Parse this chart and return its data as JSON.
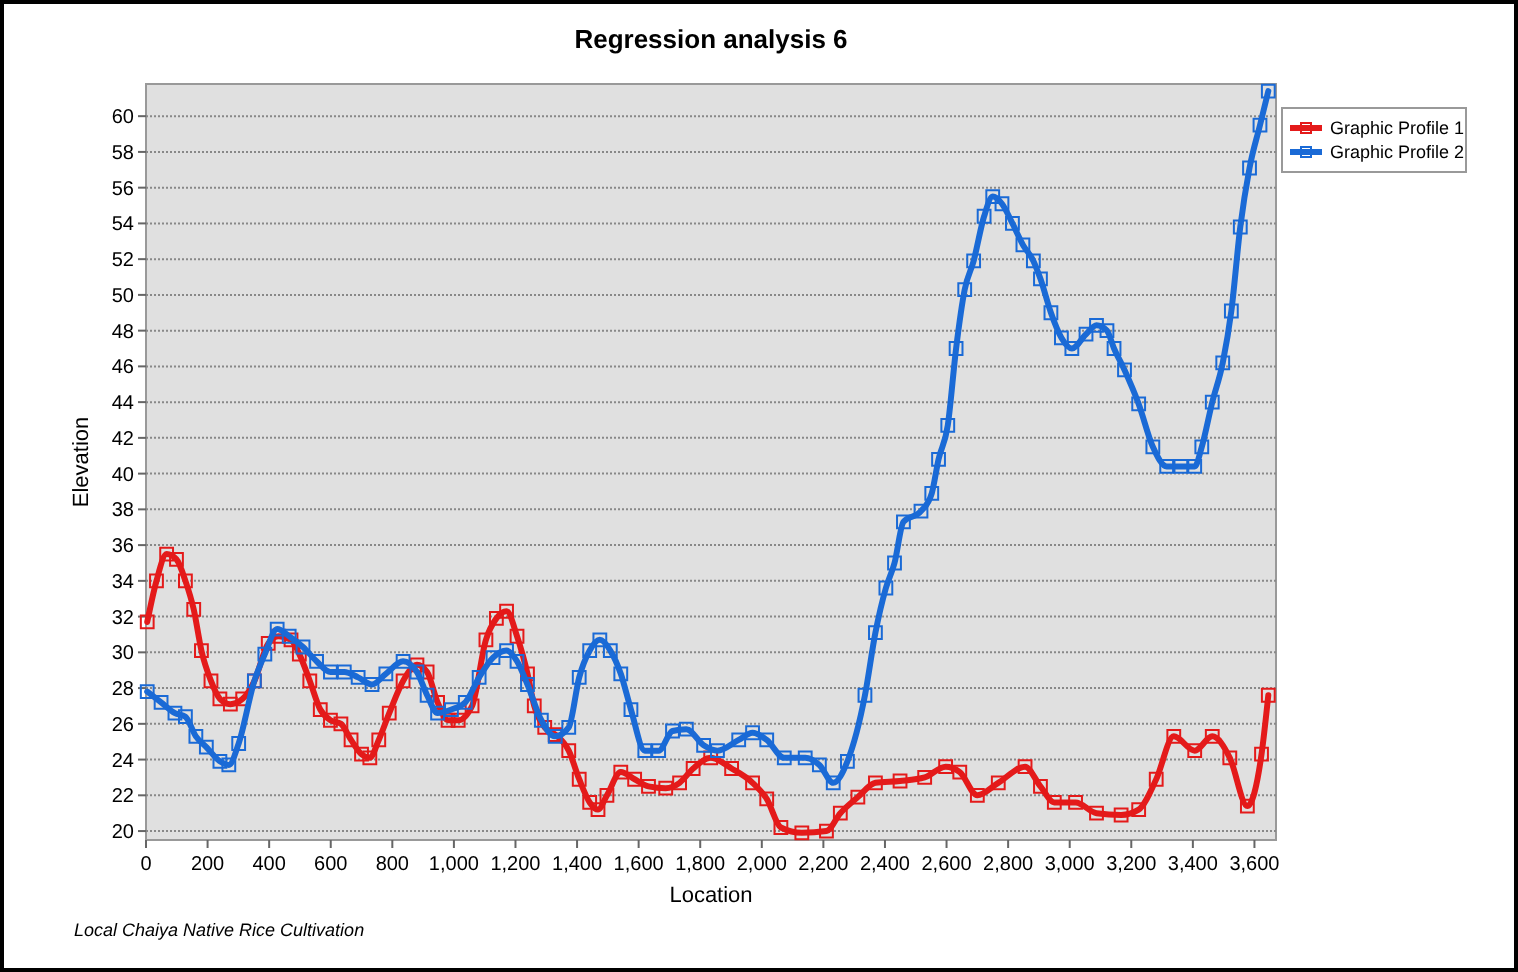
{
  "chart_data": {
    "type": "line",
    "title": "Regression analysis 6",
    "xlabel": "Location",
    "ylabel": "Elevation",
    "annotations": [
      "Local Chaiya Native Rice Cultivation"
    ],
    "xlim": [
      0,
      3670
    ],
    "ylim": [
      19.5,
      61.8
    ],
    "xticks": [
      {
        "value": 0,
        "label": "0"
      },
      {
        "value": 200,
        "label": "200"
      },
      {
        "value": 400,
        "label": "400"
      },
      {
        "value": 600,
        "label": "600"
      },
      {
        "value": 800,
        "label": "800"
      },
      {
        "value": 1000,
        "label": "1,000"
      },
      {
        "value": 1200,
        "label": "1,200"
      },
      {
        "value": 1400,
        "label": "1,400"
      },
      {
        "value": 1600,
        "label": "1,600"
      },
      {
        "value": 1800,
        "label": "1,800"
      },
      {
        "value": 2000,
        "label": "2,000"
      },
      {
        "value": 2200,
        "label": "2,200"
      },
      {
        "value": 2400,
        "label": "2,400"
      },
      {
        "value": 2600,
        "label": "2,600"
      },
      {
        "value": 2800,
        "label": "2,800"
      },
      {
        "value": 3000,
        "label": "3,000"
      },
      {
        "value": 3200,
        "label": "3,200"
      },
      {
        "value": 3400,
        "label": "3,400"
      },
      {
        "value": 3600,
        "label": "3,600"
      }
    ],
    "yticks": [
      20,
      22,
      24,
      26,
      28,
      30,
      32,
      34,
      36,
      38,
      40,
      42,
      44,
      46,
      48,
      50,
      52,
      54,
      56,
      58,
      60
    ],
    "grid": "y",
    "legend": "right",
    "marker": "square",
    "line_style": "solid",
    "series": [
      {
        "name": "Graphic Profile 1",
        "color": "#e41a1a",
        "x": [
          4,
          34,
          67,
          99,
          128,
          155,
          180,
          211,
          240,
          274,
          314,
          352,
          397,
          431,
          471,
          498,
          532,
          566,
          599,
          633,
          666,
          700,
          727,
          756,
          790,
          835,
          880,
          913,
          947,
          981,
          1014,
          1059,
          1104,
          1138,
          1171,
          1205,
          1239,
          1261,
          1295,
          1329,
          1373,
          1407,
          1441,
          1468,
          1497,
          1542,
          1587,
          1632,
          1688,
          1733,
          1777,
          1834,
          1902,
          1970,
          2016,
          2062,
          2130,
          2210,
          2255,
          2312,
          2369,
          2449,
          2529,
          2597,
          2643,
          2700,
          2768,
          2855,
          2905,
          2950,
          3019,
          3087,
          3167,
          3224,
          3281,
          3338,
          3406,
          3463,
          3520,
          3577,
          3623,
          3645
        ],
        "values": [
          31.7,
          34.0,
          35.5,
          35.2,
          34.0,
          32.4,
          30.1,
          28.4,
          27.4,
          27.1,
          27.4,
          28.4,
          30.5,
          30.9,
          30.7,
          29.9,
          28.4,
          26.8,
          26.2,
          26.0,
          25.1,
          24.3,
          24.1,
          25.1,
          26.6,
          28.4,
          29.3,
          28.9,
          27.2,
          26.2,
          26.2,
          27.0,
          30.7,
          31.9,
          32.3,
          30.9,
          28.8,
          27.0,
          25.8,
          25.4,
          24.5,
          22.9,
          21.6,
          21.2,
          22.0,
          23.3,
          22.9,
          22.5,
          22.4,
          22.7,
          23.5,
          24.1,
          23.5,
          22.7,
          21.8,
          20.2,
          19.9,
          20.0,
          21.0,
          21.9,
          22.7,
          22.8,
          23.0,
          23.6,
          23.3,
          22.0,
          22.7,
          23.6,
          22.5,
          21.6,
          21.6,
          21.0,
          20.9,
          21.2,
          22.9,
          25.3,
          24.5,
          25.3,
          24.1,
          21.4,
          24.3,
          27.6
        ]
      },
      {
        "name": "Graphic Profile 2",
        "color": "#1a6ad6",
        "x": [
          4,
          49,
          94,
          128,
          162,
          196,
          240,
          269,
          301,
          352,
          386,
          426,
          465,
          510,
          554,
          599,
          644,
          689,
          734,
          779,
          835,
          880,
          913,
          947,
          992,
          1037,
          1082,
          1127,
          1171,
          1205,
          1239,
          1284,
          1329,
          1373,
          1407,
          1441,
          1474,
          1508,
          1542,
          1575,
          1620,
          1665,
          1710,
          1755,
          1811,
          1856,
          1925,
          1970,
          2016,
          2073,
          2141,
          2187,
          2232,
          2278,
          2335,
          2369,
          2403,
          2431,
          2460,
          2517,
          2552,
          2574,
          2604,
          2631,
          2659,
          2688,
          2722,
          2750,
          2780,
          2814,
          2848,
          2882,
          2905,
          2939,
          2973,
          3007,
          3053,
          3087,
          3121,
          3144,
          3178,
          3224,
          3270,
          3315,
          3361,
          3406,
          3429,
          3463,
          3497,
          3525,
          3554,
          3584,
          3618,
          3645
        ],
        "values": [
          27.8,
          27.2,
          26.6,
          26.4,
          25.3,
          24.7,
          23.9,
          23.7,
          24.9,
          28.4,
          29.9,
          31.3,
          30.9,
          30.3,
          29.5,
          28.9,
          28.9,
          28.6,
          28.2,
          28.8,
          29.5,
          28.9,
          27.6,
          26.6,
          26.8,
          27.2,
          28.6,
          29.7,
          30.1,
          29.5,
          28.2,
          26.2,
          25.3,
          25.8,
          28.6,
          30.1,
          30.7,
          30.1,
          28.8,
          26.8,
          24.5,
          24.5,
          25.6,
          25.7,
          24.8,
          24.5,
          25.1,
          25.5,
          25.1,
          24.1,
          24.1,
          23.7,
          22.7,
          23.9,
          27.6,
          31.1,
          33.6,
          35.0,
          37.3,
          37.9,
          38.9,
          40.8,
          42.7,
          47.0,
          50.3,
          51.9,
          54.4,
          55.5,
          55.1,
          54.0,
          52.8,
          51.9,
          50.9,
          49.0,
          47.6,
          47.0,
          47.8,
          48.3,
          48.0,
          47.0,
          45.8,
          43.9,
          41.5,
          40.4,
          40.4,
          40.4,
          41.5,
          44.0,
          46.2,
          49.1,
          53.8,
          57.1,
          59.5,
          61.4
        ]
      }
    ]
  }
}
